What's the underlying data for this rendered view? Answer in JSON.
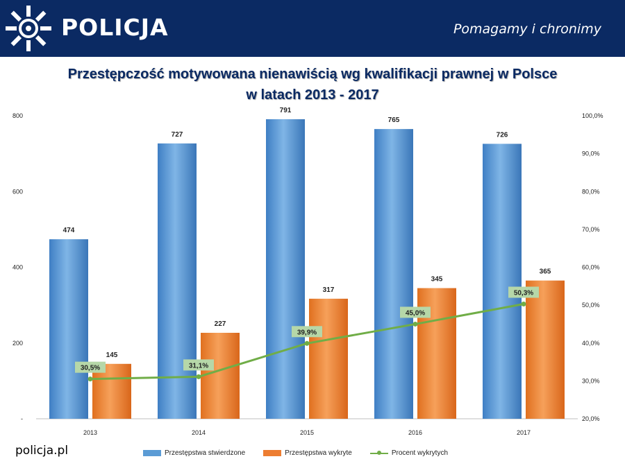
{
  "header": {
    "brand": "POLICJA",
    "slogan": "Pomagamy i chronimy",
    "logo_icon": "police-star-icon"
  },
  "title_line1": "Przestępczość motywowana nienawiścią wg kwalifikacji prawnej w Polsce",
  "title_line2": "w latach 2013 - 2017",
  "footer_brand": "policja.pl",
  "colors": {
    "header_bg": "#0b2a63",
    "series_blue": "#5b9bd5",
    "series_orange": "#ed7d31",
    "series_green": "#70ad47",
    "label_box": "#b6d7a8"
  },
  "chart_data": {
    "type": "bar",
    "categories": [
      "2013",
      "2014",
      "2015",
      "2016",
      "2017"
    ],
    "series": [
      {
        "name": "Przestępstwa stwierdzone",
        "type": "bar",
        "axis": "left",
        "values": [
          474,
          727,
          791,
          765,
          726
        ],
        "labels": [
          "474",
          "727",
          "791",
          "765",
          "726"
        ]
      },
      {
        "name": "Przestępstwa wykryte",
        "type": "bar",
        "axis": "left",
        "values": [
          145,
          227,
          317,
          345,
          365
        ],
        "labels": [
          "145",
          "227",
          "317",
          "345",
          "365"
        ]
      },
      {
        "name": "Procent wykrytych",
        "type": "line",
        "axis": "right",
        "values": [
          30.5,
          31.1,
          39.9,
          45.0,
          50.3
        ],
        "labels": [
          "30,5%",
          "31,1%",
          "39,9%",
          "45,0%",
          "50,3%"
        ]
      }
    ],
    "ylim_left": [
      0,
      800
    ],
    "yticks_left": [
      "-",
      "200",
      "400",
      "600",
      "800"
    ],
    "ylim_right": [
      20,
      100
    ],
    "yticks_right": [
      "20,0%",
      "30,0%",
      "40,0%",
      "50,0%",
      "60,0%",
      "70,0%",
      "80,0%",
      "90,0%",
      "100,0%"
    ],
    "grid": false,
    "legend": "bottom"
  }
}
